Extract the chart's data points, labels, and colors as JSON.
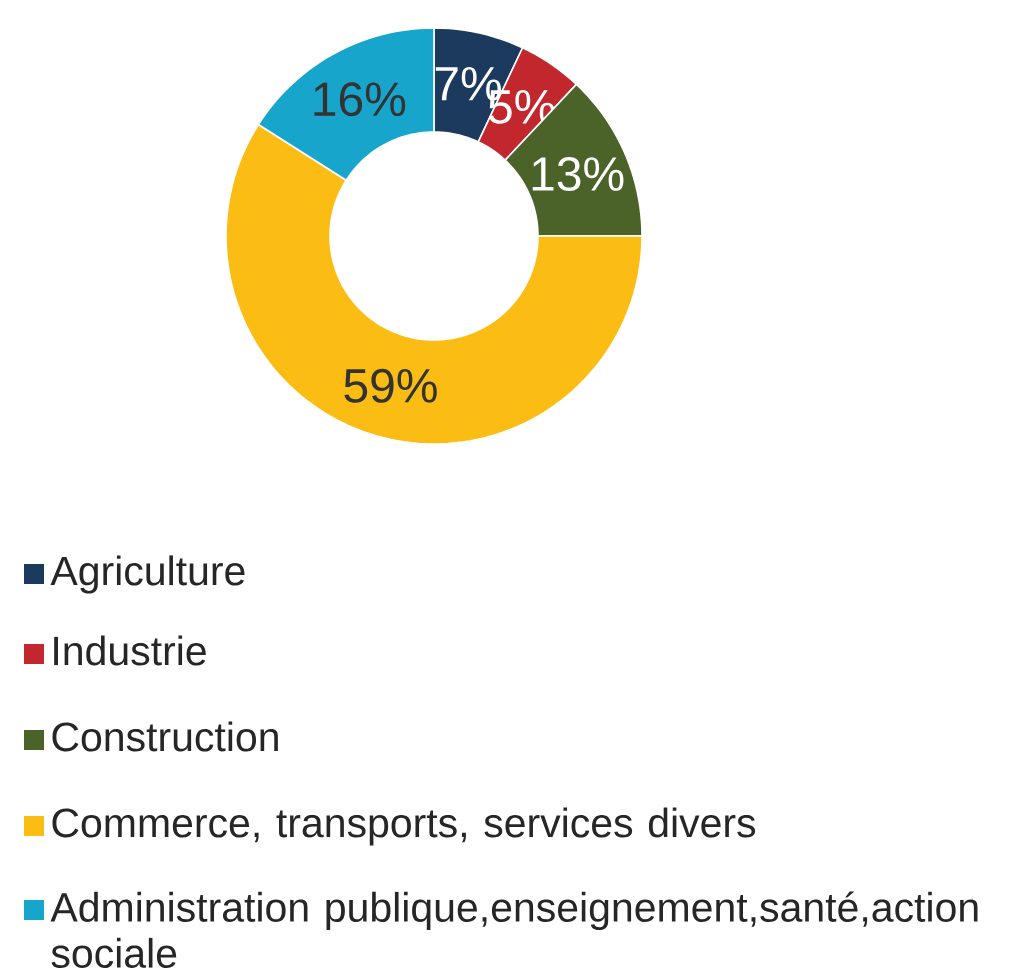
{
  "chart_data": {
    "type": "donut",
    "categories": [
      "Agriculture",
      "Industrie",
      "Construction",
      "Commerce, transports, services divers",
      "Administration publique,enseignement,santé,action sociale"
    ],
    "values": [
      7,
      5,
      13,
      59,
      16
    ],
    "value_labels": [
      "7%",
      "5%",
      "13%",
      "59%",
      "16%"
    ],
    "colors": [
      "#1b3a5e",
      "#c1272d",
      "#4b6229",
      "#fbbd13",
      "#17a5cb"
    ],
    "legend": "bottom"
  }
}
